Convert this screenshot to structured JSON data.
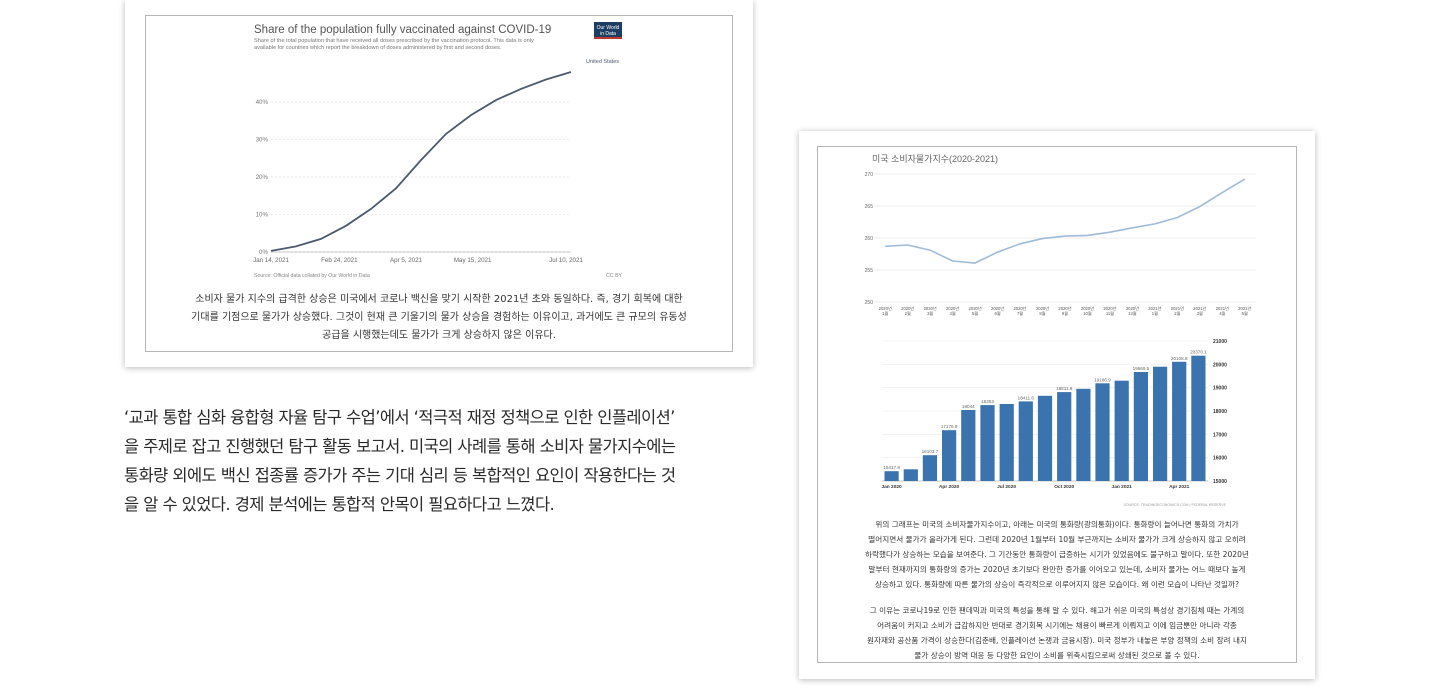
{
  "left_card": {
    "chart_data": {
      "type": "line",
      "title": "Share of the population fully vaccinated against COVID-19",
      "subtitle_lines": [
        "Share of the total population that have received all doses prescribed by the vaccination protocol. This data is only",
        "available for countries which report the breakdown of doses administered by first and second doses."
      ],
      "logo": [
        "Our World",
        "in Data"
      ],
      "series": [
        {
          "name": "United States",
          "x": [
            "Jan 14, 2021",
            "Jan 29, 2021",
            "Feb 13, 2021",
            "Feb 28, 2021",
            "Mar 15, 2021",
            "Mar 30, 2021",
            "Apr 14, 2021",
            "Apr 29, 2021",
            "May 14, 2021",
            "May 29, 2021",
            "Jun 13, 2021",
            "Jun 28, 2021",
            "Jul 13, 2021"
          ],
          "values": [
            0.3,
            1.5,
            3.5,
            7.0,
            11.5,
            17.0,
            24.5,
            31.5,
            36.5,
            40.5,
            43.5,
            46.0,
            48.0
          ]
        }
      ],
      "x_ticks": [
        "Jan 14, 2021",
        "Feb 24, 2021",
        "Apr 5, 2021",
        "May 15, 2021",
        "Jul 10, 2021"
      ],
      "y_ticks": [
        "0%",
        "10%",
        "20%",
        "30%",
        "40%"
      ],
      "ylim": [
        0,
        48
      ],
      "grid": true,
      "source": "Source: Official data collated by Our World in Data",
      "license": "CC BY"
    },
    "caption_lines": [
      "소비자 물가 지수의 급격한 상승은 미국에서 코로나 백신을 맞기 시작한 2021년 초와 동일하다. 즉, 경기 회복에 대한",
      "기대를 기점으로 물가가 상승했다. 그것이 현재 큰 기울기의 물가 상승을 경험하는 이유이고, 과거에도 큰 규모의 유동성",
      "공급을 시행했는데도 물가가 크게 상승하지 않은 이유다."
    ]
  },
  "report_lines": [
    "‘교과 통합 심화 융합형 자율 탐구 수업’에서 ‘적극적 재정 정책으로 인한 인플레이션’",
    "을 주제로 잡고 진행했던 탐구 활동 보고서. 미국의 사례를 통해 소비자 물가지수에는",
    "통화량 외에도 백신 접종률 증가가 주는 기대 심리 등 복합적인 요인이 작용한다는 것",
    "을 알 수 있었다. 경제 분석에는 통합적 안목이 필요하다고 느꼈다."
  ],
  "right_card": {
    "chart_data": [
      {
        "type": "line",
        "title": "미국 소비자물가지수(2020-2021)",
        "categories": [
          [
            "2020년",
            "1월"
          ],
          [
            "2020년",
            "2월"
          ],
          [
            "2020년",
            "3월"
          ],
          [
            "2020년",
            "4월"
          ],
          [
            "2020년",
            "5월"
          ],
          [
            "2020년",
            "6월"
          ],
          [
            "2020년",
            "7월"
          ],
          [
            "2020년",
            "8월"
          ],
          [
            "2020년",
            "9월"
          ],
          [
            "2020년",
            "10월"
          ],
          [
            "2020년",
            "11월"
          ],
          [
            "2020년",
            "12월"
          ],
          [
            "2021년",
            "1월"
          ],
          [
            "2021년",
            "2월"
          ],
          [
            "2021년",
            "3월"
          ],
          [
            "2021년",
            "4월"
          ],
          [
            "2021년",
            "5월"
          ]
        ],
        "values": [
          258.7,
          258.9,
          258.1,
          256.4,
          256.1,
          257.8,
          259.1,
          259.9,
          260.3,
          260.4,
          260.9,
          261.6,
          262.2,
          263.2,
          264.9,
          267.1,
          269.2
        ],
        "y_ticks": [
          "270",
          "265",
          "260",
          "255",
          "250"
        ],
        "ylim": [
          250,
          270
        ],
        "grid": true
      },
      {
        "type": "bar",
        "values": [
          15417.9,
          15500,
          16103.7,
          17176.9,
          18044,
          18253,
          18300,
          18411.6,
          18650,
          18811.6,
          18950,
          19186.9,
          19300,
          19669.5,
          19900,
          20108.6,
          20370.1
        ],
        "data_labels": [
          "15417.9",
          "",
          "16103.7",
          "17176.9",
          "18044",
          "18253",
          "",
          "18411.6",
          "",
          "18811.6",
          "",
          "19186.9",
          "",
          "19669.5",
          "",
          "20108.6",
          "20370.1"
        ],
        "x_ticks": [
          "Jan 2020",
          "Apr 2020",
          "Jul 2020",
          "Oct 2020",
          "Jan 2021",
          "Apr 2021"
        ],
        "y_ticks": [
          "21000",
          "20000",
          "19000",
          "18000",
          "17000",
          "16000",
          "15000"
        ],
        "ylim": [
          15000,
          21000
        ],
        "color": "#3a73ad",
        "source": "SOURCE: TRADINGECONOMICS.COM | FEDERAL RESERVE"
      }
    ],
    "paragraph1_lines": [
      "위의 그래프는 미국의 소비자물가지수이고, 아래는 미국의 통화량(광의통화)이다. 통화량이 늘어나면 통화의 가치가",
      "떨어지면서 물가가 올라가게 된다. 그런데 2020년 1월부터 10월 부근까지는 소비자 물가가 크게 상승하지 않고 오히려",
      "하락했다가 상승하는 모습을 보여준다. 그 기간동안 통화량이 급증하는 시기가 있었음에도 불구하고 말이다. 또한 2020년",
      "말부터 현재까지의 통화량의 증가는 2020년 초기보다 완만한 증가를 이어오고 있는데, 소비자 물가는 어느 때보다 높게",
      "상승하고 있다. 통화량에 따른 물가의 상승이 즉각적으로 이루어지지 않은 모습이다. 왜 이런 모습이 나타난 것일까?"
    ],
    "paragraph2_lines": [
      "그 이유는 코로나19로 인한 팬데믹과 미국의 특성을 통해 알 수 있다. 해고가 쉬운 미국의 특성상 경기침체 때는 가계의",
      "어려움이 커지고 소비가 급감하지만 반대로 경기회복 시기에는 채용이 빠르게 이뤄지고 이에 임금뿐만 아니라 각종",
      "원자재와 공산품 가격이 상승한다(김춘배, 인플레이션 논쟁과 금융시장). 미국 정부가 내놓은 부양 정책의 소비 장려 내지",
      "물가 상승이 방역 대응 등 다양한 요인이 소비를 위축시킴으로써 상쇄된 것으로 볼 수 있다."
    ]
  }
}
